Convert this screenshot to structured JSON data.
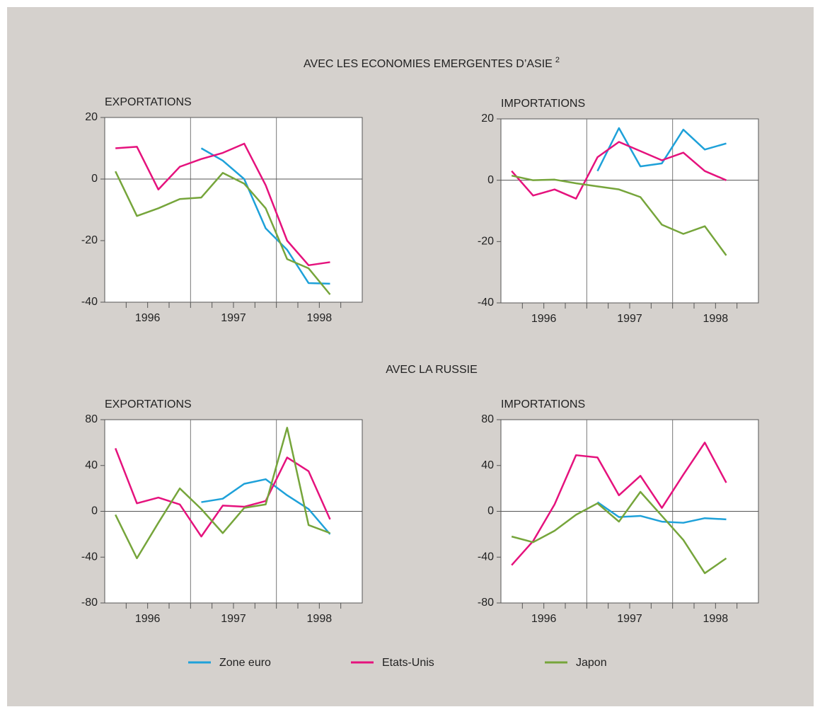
{
  "section_titles": [
    {
      "text": "AVEC LES ECONOMIES EMERGENTES D’ASIE",
      "note": "2"
    },
    {
      "text": "AVEC LA RUSSIE"
    }
  ],
  "chart_data": [
    {
      "type": "line",
      "title": "EXPORTATIONS",
      "x": [
        1996.125,
        1996.375,
        1996.625,
        1996.875,
        1997.125,
        1997.375,
        1997.625,
        1997.875,
        1998.125,
        1998.375,
        1998.625
      ],
      "xlim": [
        1996,
        1999
      ],
      "xticks": [
        {
          "value": 1996.5,
          "label": "1996"
        },
        {
          "value": 1997.5,
          "label": "1997"
        },
        {
          "value": 1998.5,
          "label": "1998"
        }
      ],
      "ylim": [
        -40,
        20
      ],
      "yticks": [
        -40,
        -20,
        0,
        20
      ],
      "series": [
        {
          "name": "Zone euro",
          "color": "#1ea1d9",
          "values": [
            null,
            null,
            null,
            null,
            10,
            6,
            0,
            -16,
            -23,
            -33.8,
            -34
          ]
        },
        {
          "name": "Etats-Unis",
          "color": "#e5127d",
          "values": [
            10,
            10.5,
            -3.4,
            4,
            6.5,
            8.5,
            11.5,
            -2,
            -20,
            -28,
            -27
          ]
        },
        {
          "name": "Japon",
          "color": "#76a53b",
          "values": [
            2.5,
            -12,
            -9.5,
            -6.5,
            -6,
            2,
            -1.5,
            -9.5,
            -26,
            -29,
            -37.5
          ]
        }
      ]
    },
    {
      "type": "line",
      "title": "IMPORTATIONS",
      "x": [
        1996.125,
        1996.375,
        1996.625,
        1996.875,
        1997.125,
        1997.375,
        1997.625,
        1997.875,
        1998.125,
        1998.375,
        1998.625
      ],
      "xlim": [
        1996,
        1999
      ],
      "xticks": [
        {
          "value": 1996.5,
          "label": "1996"
        },
        {
          "value": 1997.5,
          "label": "1997"
        },
        {
          "value": 1998.5,
          "label": "1998"
        }
      ],
      "ylim": [
        -40,
        20
      ],
      "yticks": [
        -40,
        -20,
        0,
        20
      ],
      "series": [
        {
          "name": "Zone euro",
          "color": "#1ea1d9",
          "values": [
            null,
            null,
            null,
            null,
            3,
            17,
            4.5,
            5.5,
            16.5,
            10,
            12
          ]
        },
        {
          "name": "Etats-Unis",
          "color": "#e5127d",
          "values": [
            3,
            -5,
            -3,
            -6,
            7.5,
            12.5,
            9.5,
            6.5,
            9,
            3,
            0
          ]
        },
        {
          "name": "Japon",
          "color": "#76a53b",
          "values": [
            1.5,
            0,
            0.2,
            -1,
            -2,
            -3,
            -5.5,
            -14.5,
            -17.5,
            -15,
            -24.5
          ]
        }
      ]
    },
    {
      "type": "line",
      "title": "EXPORTATIONS",
      "x": [
        1996.125,
        1996.375,
        1996.625,
        1996.875,
        1997.125,
        1997.375,
        1997.625,
        1997.875,
        1998.125,
        1998.375,
        1998.625
      ],
      "xlim": [
        1996,
        1999
      ],
      "xticks": [
        {
          "value": 1996.5,
          "label": "1996"
        },
        {
          "value": 1997.5,
          "label": "1997"
        },
        {
          "value": 1998.5,
          "label": "1998"
        }
      ],
      "ylim": [
        -80,
        80
      ],
      "yticks": [
        -80,
        -40,
        0,
        40,
        80
      ],
      "series": [
        {
          "name": "Zone euro",
          "color": "#1ea1d9",
          "values": [
            null,
            null,
            null,
            null,
            8,
            11,
            24,
            28,
            14,
            2,
            -20
          ]
        },
        {
          "name": "Etats-Unis",
          "color": "#e5127d",
          "values": [
            55,
            7,
            12,
            6,
            -22,
            5,
            4,
            9,
            47,
            35,
            -7
          ]
        },
        {
          "name": "Japon",
          "color": "#76a53b",
          "values": [
            -3,
            -41,
            -10,
            20,
            2,
            -19,
            3,
            6,
            73,
            -12,
            -19
          ]
        }
      ]
    },
    {
      "type": "line",
      "title": "IMPORTATIONS",
      "x": [
        1996.125,
        1996.375,
        1996.625,
        1996.875,
        1997.125,
        1997.375,
        1997.625,
        1997.875,
        1998.125,
        1998.375,
        1998.625
      ],
      "xlim": [
        1996,
        1999
      ],
      "xticks": [
        {
          "value": 1996.5,
          "label": "1996"
        },
        {
          "value": 1997.5,
          "label": "1997"
        },
        {
          "value": 1998.5,
          "label": "1998"
        }
      ],
      "ylim": [
        -80,
        80
      ],
      "yticks": [
        -80,
        -40,
        0,
        40,
        80
      ],
      "series": [
        {
          "name": "Zone euro",
          "color": "#1ea1d9",
          "values": [
            null,
            null,
            null,
            null,
            8,
            -5,
            -4,
            -9,
            -10,
            -6,
            -7
          ]
        },
        {
          "name": "Etats-Unis",
          "color": "#e5127d",
          "values": [
            -47,
            -26,
            6,
            49,
            47,
            14,
            31,
            3,
            32,
            60,
            25
          ]
        },
        {
          "name": "Japon",
          "color": "#76a53b",
          "values": [
            -22,
            -27,
            -17,
            -3,
            7,
            -9,
            17,
            -4,
            -25,
            -54,
            -41
          ]
        }
      ]
    }
  ]
}
